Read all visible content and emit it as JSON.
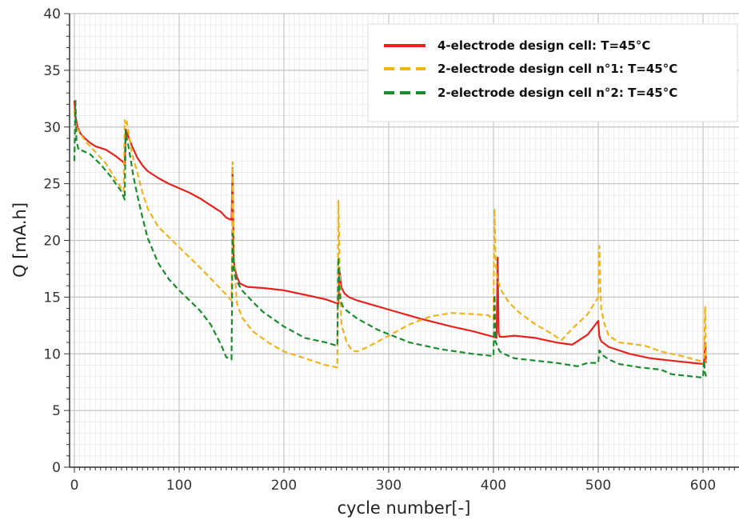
{
  "chart_data": {
    "type": "line",
    "title": "",
    "xlabel": "cycle number[-]",
    "ylabel": "Q [mA.h]",
    "xlim": [
      -8,
      640
    ],
    "ylim": [
      0,
      40
    ],
    "xticks": [
      0,
      100,
      200,
      300,
      400,
      500,
      600
    ],
    "yticks": [
      0,
      5,
      10,
      15,
      20,
      25,
      30,
      35,
      40
    ],
    "grid": true,
    "minor_grid": true,
    "legend_position": "top-right",
    "series": [
      {
        "name": "4-electrode design cell: T=45°C",
        "color": "#e8231e",
        "dash": "solid",
        "x": [
          0,
          1,
          3,
          6,
          10,
          15,
          20,
          30,
          40,
          48,
          49,
          50,
          51,
          53,
          55,
          60,
          65,
          70,
          80,
          90,
          100,
          110,
          120,
          130,
          140,
          145,
          150,
          151,
          152,
          153,
          154,
          155,
          158,
          165,
          180,
          200,
          220,
          240,
          252,
          253,
          254,
          255,
          258,
          262,
          270,
          300,
          330,
          360,
          380,
          400,
          403,
          404,
          405,
          406,
          410,
          420,
          440,
          460,
          475,
          490,
          500,
          501,
          502,
          503,
          510,
          530,
          550,
          570,
          590,
          601,
          602,
          603
        ],
        "y": [
          32.3,
          31,
          30,
          29.4,
          29.0,
          28.6,
          28.3,
          28.0,
          27.4,
          26.8,
          29.8,
          29.5,
          29.3,
          28.8,
          28.3,
          27.3,
          26.6,
          26.1,
          25.5,
          25.0,
          24.6,
          24.2,
          23.7,
          23.1,
          22.5,
          22.0,
          21.8,
          26.4,
          18.5,
          17.6,
          17.2,
          16.8,
          16.2,
          15.9,
          15.8,
          15.6,
          15.2,
          14.8,
          14.4,
          17.5,
          16.5,
          15.8,
          15.3,
          15.0,
          14.7,
          13.9,
          13.1,
          12.4,
          12.0,
          11.5,
          11.4,
          18.5,
          11.8,
          11.5,
          11.5,
          11.6,
          11.4,
          11.0,
          10.8,
          11.7,
          12.9,
          11.6,
          11.3,
          11.1,
          10.6,
          10.0,
          9.6,
          9.4,
          9.2,
          9.1,
          11.0,
          9.2
        ]
      },
      {
        "name": "2-electrode design cell n°1: T=45°C",
        "color": "#f2b21b",
        "dash": "dashed",
        "x": [
          0,
          1,
          3,
          6,
          10,
          20,
          30,
          40,
          47,
          48,
          49,
          50,
          51,
          53,
          55,
          60,
          65,
          70,
          80,
          100,
          120,
          140,
          150,
          151,
          152,
          153,
          154,
          155,
          160,
          170,
          185,
          200,
          220,
          240,
          251,
          252,
          253,
          254,
          255,
          260,
          265,
          270,
          280,
          300,
          320,
          340,
          360,
          380,
          395,
          400,
          401,
          402,
          403,
          404,
          408,
          415,
          425,
          440,
          455,
          465,
          475,
          490,
          500,
          501,
          502,
          503,
          506,
          510,
          520,
          530,
          545,
          560,
          580,
          600,
          601,
          602,
          603
        ],
        "y": [
          31.5,
          30.5,
          29.8,
          29.4,
          28.8,
          27.8,
          26.8,
          25.3,
          24.3,
          30.6,
          30.2,
          30.5,
          30.0,
          28.8,
          27.6,
          26.0,
          24.2,
          22.8,
          21.2,
          19.4,
          17.6,
          15.7,
          14.7,
          26.9,
          19.5,
          17.5,
          16.0,
          14.5,
          13.2,
          12.0,
          11.0,
          10.2,
          9.6,
          9.0,
          8.8,
          23.5,
          18.5,
          14.5,
          12.5,
          11.0,
          10.3,
          10.2,
          10.6,
          11.6,
          12.6,
          13.3,
          13.6,
          13.5,
          13.4,
          13.0,
          22.8,
          18.5,
          17.0,
          16.5,
          15.5,
          14.5,
          13.6,
          12.6,
          11.8,
          11.2,
          12.2,
          13.5,
          15.0,
          19.5,
          16.0,
          13.8,
          12.6,
          11.6,
          11.0,
          10.9,
          10.7,
          10.2,
          9.8,
          9.3,
          9.0,
          14.2,
          9.3
        ]
      },
      {
        "name": "2-electrode design cell n°2: T=45°C",
        "color": "#1a8c2e",
        "dash": "dashed",
        "x": [
          0,
          1,
          2,
          4,
          8,
          15,
          25,
          35,
          45,
          48,
          49,
          50,
          51,
          52,
          54,
          56,
          60,
          65,
          70,
          80,
          90,
          100,
          110,
          120,
          130,
          140,
          145,
          150,
          151,
          152,
          153,
          155,
          160,
          170,
          180,
          200,
          220,
          240,
          251,
          252,
          253,
          254,
          256,
          260,
          270,
          290,
          320,
          350,
          380,
          400,
          401,
          402,
          403,
          404,
          406,
          410,
          420,
          440,
          460,
          480,
          490,
          500,
          501,
          502,
          504,
          510,
          520,
          540,
          560,
          570,
          590,
          600,
          601,
          602,
          603
        ],
        "y": [
          27.0,
          32.4,
          28.8,
          28.0,
          27.9,
          27.6,
          26.7,
          25.6,
          24.3,
          23.6,
          29.7,
          29.0,
          28.6,
          28.1,
          27.0,
          25.8,
          24.0,
          22.0,
          20.2,
          18.0,
          16.6,
          15.6,
          14.7,
          13.8,
          12.6,
          10.8,
          9.7,
          9.5,
          20.6,
          17.8,
          17.0,
          16.4,
          15.6,
          14.6,
          13.7,
          12.4,
          11.4,
          11.0,
          10.7,
          18.5,
          15.8,
          14.8,
          14.2,
          13.8,
          13.1,
          12.1,
          11.0,
          10.4,
          10.0,
          9.8,
          15.2,
          11.0,
          10.9,
          10.6,
          10.2,
          10.0,
          9.6,
          9.4,
          9.2,
          8.9,
          9.2,
          9.2,
          10.3,
          10.2,
          9.9,
          9.5,
          9.1,
          8.8,
          8.6,
          8.2,
          8.0,
          7.9,
          9.4,
          8.3,
          8.0
        ]
      }
    ]
  }
}
